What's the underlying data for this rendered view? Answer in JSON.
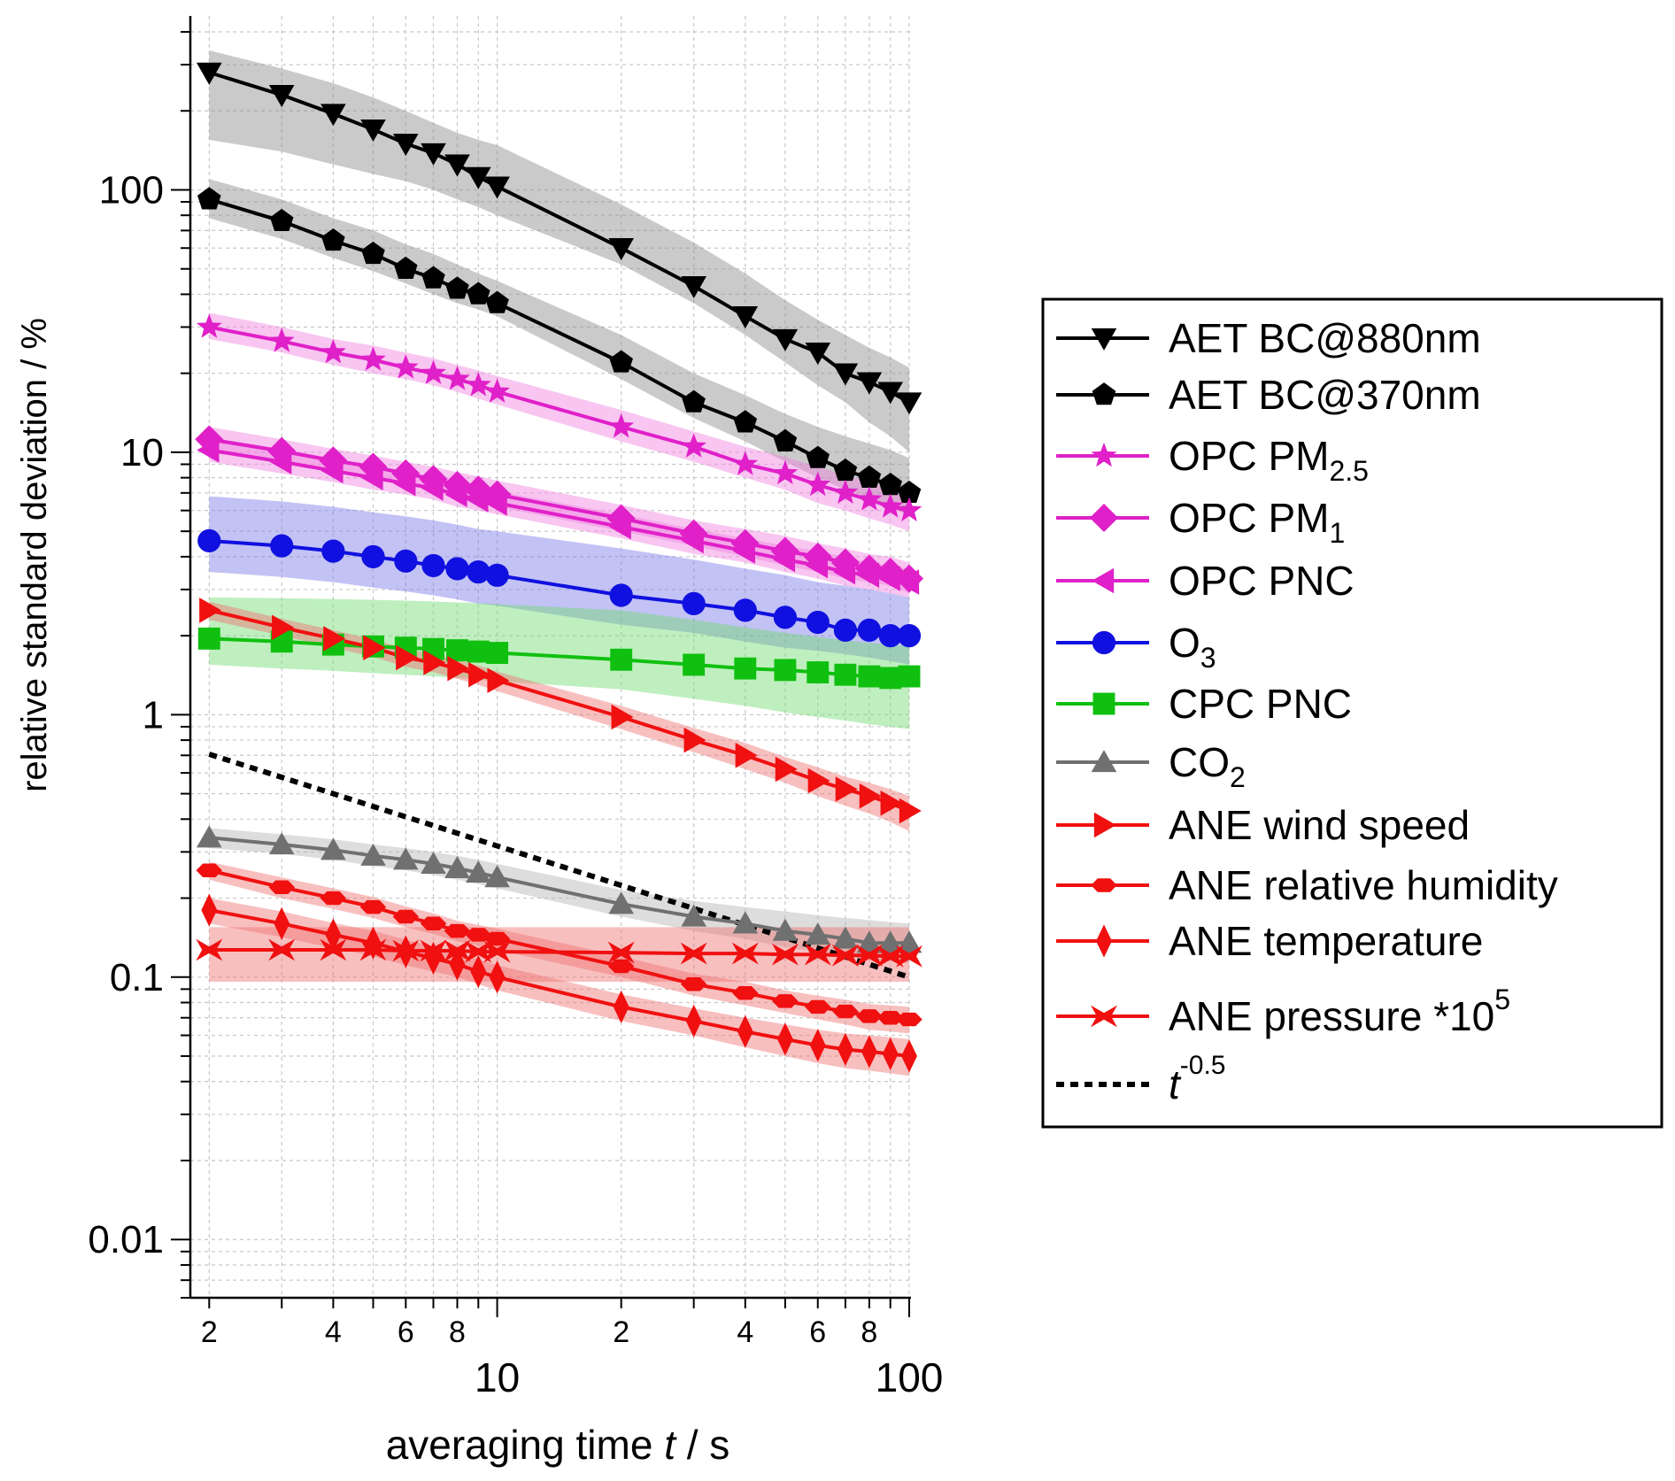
{
  "chart_data": {
    "type": "line",
    "xscale": "log",
    "yscale": "log",
    "xlim": [
      1.8,
      100
    ],
    "ylim": [
      0.006,
      460
    ],
    "grid": true,
    "xlabel": {
      "pre": "averaging time ",
      "italic": "t",
      "post": " / s"
    },
    "ylabel": "relative standard deviation / %",
    "x_major_ticks": [
      {
        "value": 10,
        "label": "10"
      },
      {
        "value": 100,
        "label": "100"
      }
    ],
    "x_minor_labeled_ticks": [
      {
        "value": 2,
        "label": "2"
      },
      {
        "value": 4,
        "label": "4"
      },
      {
        "value": 6,
        "label": "6"
      },
      {
        "value": 8,
        "label": "8"
      },
      {
        "value": 20,
        "label": "2"
      },
      {
        "value": 40,
        "label": "4"
      },
      {
        "value": 60,
        "label": "6"
      },
      {
        "value": 80,
        "label": "8"
      }
    ],
    "y_major_ticks": [
      {
        "value": 0.01,
        "label": "0.01"
      },
      {
        "value": 0.1,
        "label": "0.1"
      },
      {
        "value": 1,
        "label": "1"
      },
      {
        "value": 10,
        "label": "10"
      },
      {
        "value": 100,
        "label": "100"
      }
    ],
    "x": [
      2,
      3,
      4,
      5,
      6,
      7,
      8,
      9,
      10,
      20,
      30,
      40,
      50,
      60,
      70,
      80,
      90,
      100
    ],
    "legend_position": "right",
    "series": [
      {
        "name": "AET BC@880nm",
        "label_main": "AET BC@880nm",
        "color": "#000000",
        "band_color": "#8a8a8a",
        "marker": "triangle-down",
        "values": [
          280,
          230,
          195,
          170,
          150,
          138,
          125,
          112,
          103,
          60,
          43,
          33,
          27,
          24,
          20,
          18.5,
          17,
          15.5
        ],
        "band_lower": [
          155,
          140,
          125,
          115,
          108,
          100,
          92,
          86,
          80,
          52,
          37,
          28,
          22,
          18,
          15.5,
          13,
          11.5,
          10
        ],
        "band_upper": [
          340,
          290,
          255,
          225,
          200,
          180,
          165,
          155,
          148,
          88,
          63,
          48,
          38,
          32,
          28,
          25,
          23,
          21
        ]
      },
      {
        "name": "AET BC@370nm",
        "label_main": "AET BC@370nm",
        "color": "#000000",
        "band_color": "#8a8a8a",
        "marker": "pentagon",
        "values": [
          92,
          76,
          64,
          57,
          50,
          46,
          42,
          40,
          37,
          22,
          15.5,
          13,
          11,
          9.5,
          8.5,
          8,
          7.5,
          7
        ],
        "band_lower": [
          78,
          65,
          55,
          49,
          44,
          40,
          37,
          35,
          33,
          19,
          13.5,
          11,
          9.2,
          8,
          7.2,
          6.7,
          6.2,
          5.7
        ],
        "band_upper": [
          110,
          92,
          78,
          70,
          62,
          57,
          52,
          48,
          45,
          28,
          20,
          16.5,
          14,
          12.5,
          11.5,
          10.8,
          10.2,
          9.5
        ]
      },
      {
        "name": "OPC PM2.5",
        "label_main": "OPC PM",
        "label_sub": "2.5",
        "color": "#e020c8",
        "band_color": "#f080e0",
        "marker": "star",
        "values": [
          30,
          26.5,
          24,
          22.5,
          21,
          20,
          19,
          18,
          17,
          12.5,
          10.5,
          9,
          8.3,
          7.5,
          7,
          6.6,
          6.2,
          6
        ],
        "band_lower": [
          27,
          24,
          21.5,
          20,
          19,
          18,
          17,
          16,
          15.2,
          11,
          9.2,
          8,
          7.2,
          6.4,
          6,
          5.6,
          5.3,
          5
        ],
        "band_upper": [
          34,
          30,
          27,
          25.5,
          24,
          22.8,
          21.5,
          20.5,
          19.5,
          14.5,
          12,
          10.5,
          9.6,
          8.8,
          8.2,
          7.7,
          7.3,
          7
        ]
      },
      {
        "name": "OPC PM1",
        "label_main": "OPC PM",
        "label_sub": "1",
        "color": "#e020c8",
        "band_color": "#f080e0",
        "marker": "diamond",
        "values": [
          11.2,
          10.1,
          9.3,
          8.8,
          8.3,
          7.9,
          7.5,
          7.2,
          6.9,
          5.6,
          4.9,
          4.5,
          4.2,
          4,
          3.8,
          3.6,
          3.5,
          3.3
        ],
        "band_lower": [
          10,
          9.1,
          8.4,
          7.9,
          7.5,
          7.1,
          6.7,
          6.5,
          6.2,
          5,
          4.4,
          4,
          3.7,
          3.5,
          3.3,
          3.2,
          3.1,
          2.9
        ],
        "band_upper": [
          12.5,
          11.2,
          10.3,
          9.7,
          9.2,
          8.8,
          8.4,
          8.1,
          7.8,
          6.3,
          5.5,
          5.1,
          4.8,
          4.5,
          4.3,
          4.1,
          4,
          3.8
        ]
      },
      {
        "name": "OPC PNC",
        "label_main": "OPC PNC",
        "color": "#e020c8",
        "band_color": "#f080e0",
        "marker": "triangle-left",
        "values": [
          10.2,
          9.2,
          8.5,
          8,
          7.6,
          7.3,
          6.9,
          6.6,
          6.4,
          5.2,
          4.6,
          4.2,
          3.9,
          3.7,
          3.5,
          3.4,
          3.3,
          3.2
        ],
        "band_lower": [
          9.2,
          8.3,
          7.7,
          7.2,
          6.9,
          6.6,
          6.2,
          6,
          5.8,
          4.7,
          4.1,
          3.8,
          3.5,
          3.3,
          3.1,
          3,
          2.9,
          2.8
        ],
        "band_upper": [
          11.4,
          10.3,
          9.5,
          8.9,
          8.4,
          8.1,
          7.7,
          7.4,
          7.1,
          5.8,
          5.1,
          4.7,
          4.4,
          4.2,
          4,
          3.8,
          3.7,
          3.6
        ]
      },
      {
        "name": "O3",
        "label_main": "O",
        "label_sub": "3",
        "color": "#1010e0",
        "band_color": "#7878e8",
        "marker": "circle",
        "values": [
          4.6,
          4.4,
          4.2,
          4.0,
          3.85,
          3.7,
          3.6,
          3.5,
          3.4,
          2.85,
          2.65,
          2.5,
          2.35,
          2.25,
          2.1,
          2.1,
          2.0,
          2.0
        ],
        "band_lower": [
          3.5,
          3.35,
          3.2,
          3.05,
          2.95,
          2.85,
          2.75,
          2.65,
          2.6,
          2.2,
          2.05,
          1.9,
          1.8,
          1.75,
          1.7,
          1.65,
          1.6,
          1.55
        ],
        "band_upper": [
          6.8,
          6.5,
          6.2,
          5.9,
          5.7,
          5.5,
          5.3,
          5.1,
          5,
          4.3,
          3.9,
          3.6,
          3.4,
          3.2,
          3.1,
          3,
          2.9,
          2.8
        ]
      },
      {
        "name": "CPC PNC",
        "label_main": "CPC PNC",
        "color": "#10c010",
        "band_color": "#70dc70",
        "marker": "square",
        "values": [
          1.95,
          1.9,
          1.85,
          1.82,
          1.8,
          1.78,
          1.76,
          1.74,
          1.72,
          1.62,
          1.55,
          1.5,
          1.48,
          1.45,
          1.42,
          1.4,
          1.38,
          1.4
        ],
        "band_lower": [
          1.55,
          1.5,
          1.47,
          1.44,
          1.42,
          1.4,
          1.38,
          1.36,
          1.34,
          1.25,
          1.15,
          1.08,
          1.02,
          0.98,
          0.95,
          0.92,
          0.9,
          0.88
        ],
        "band_upper": [
          2.8,
          2.78,
          2.76,
          2.74,
          2.72,
          2.7,
          2.68,
          2.66,
          2.64,
          2.5,
          2.3,
          2.15,
          2.05,
          1.98,
          1.92,
          1.88,
          1.85,
          1.82
        ]
      },
      {
        "name": "CO2",
        "label_main": "CO",
        "label_sub": "2",
        "color": "#707070",
        "band_color": "#b4b4b4",
        "marker": "triangle-up",
        "values": [
          0.34,
          0.32,
          0.305,
          0.29,
          0.28,
          0.27,
          0.26,
          0.25,
          0.24,
          0.19,
          0.17,
          0.16,
          0.15,
          0.145,
          0.14,
          0.135,
          0.135,
          0.135
        ],
        "band_lower": [
          0.31,
          0.295,
          0.28,
          0.265,
          0.255,
          0.245,
          0.235,
          0.226,
          0.218,
          0.17,
          0.15,
          0.14,
          0.13,
          0.125,
          0.12,
          0.117,
          0.115,
          0.113
        ],
        "band_upper": [
          0.37,
          0.35,
          0.335,
          0.32,
          0.31,
          0.3,
          0.29,
          0.28,
          0.27,
          0.215,
          0.195,
          0.185,
          0.178,
          0.172,
          0.168,
          0.165,
          0.162,
          0.16
        ]
      },
      {
        "name": "ANE wind speed",
        "label_main": "ANE wind speed",
        "color": "#f01010",
        "band_color": "#f07070",
        "marker": "triangle-right",
        "values": [
          2.5,
          2.15,
          1.95,
          1.8,
          1.65,
          1.58,
          1.5,
          1.42,
          1.35,
          0.98,
          0.8,
          0.7,
          0.62,
          0.56,
          0.52,
          0.49,
          0.46,
          0.43
        ],
        "band_lower": [
          2.3,
          2.0,
          1.8,
          1.66,
          1.52,
          1.45,
          1.37,
          1.3,
          1.23,
          0.88,
          0.72,
          0.62,
          0.55,
          0.49,
          0.45,
          0.42,
          0.39,
          0.36
        ],
        "band_upper": [
          2.7,
          2.32,
          2.1,
          1.94,
          1.78,
          1.7,
          1.62,
          1.54,
          1.46,
          1.08,
          0.89,
          0.78,
          0.69,
          0.63,
          0.58,
          0.55,
          0.52,
          0.49
        ]
      },
      {
        "name": "ANE relative humidity",
        "label_main": "ANE relative humidity",
        "color": "#f01010",
        "band_color": "#f07070",
        "marker": "hexagon",
        "values": [
          0.255,
          0.22,
          0.2,
          0.185,
          0.17,
          0.16,
          0.15,
          0.145,
          0.14,
          0.11,
          0.094,
          0.087,
          0.081,
          0.077,
          0.074,
          0.071,
          0.07,
          0.069
        ],
        "band_lower": [
          0.235,
          0.2,
          0.182,
          0.168,
          0.155,
          0.146,
          0.137,
          0.132,
          0.127,
          0.1,
          0.085,
          0.078,
          0.073,
          0.069,
          0.066,
          0.063,
          0.062,
          0.061
        ],
        "band_upper": [
          0.275,
          0.24,
          0.218,
          0.202,
          0.186,
          0.175,
          0.164,
          0.158,
          0.153,
          0.12,
          0.103,
          0.096,
          0.089,
          0.085,
          0.082,
          0.079,
          0.078,
          0.077
        ]
      },
      {
        "name": "ANE temperature",
        "label_main": "ANE temperature",
        "color": "#f01010",
        "band_color": "#f07070",
        "marker": "thin-diamond",
        "values": [
          0.18,
          0.16,
          0.145,
          0.135,
          0.125,
          0.118,
          0.112,
          0.105,
          0.1,
          0.077,
          0.068,
          0.062,
          0.058,
          0.055,
          0.053,
          0.052,
          0.051,
          0.05
        ],
        "band_lower": [
          0.16,
          0.142,
          0.129,
          0.12,
          0.111,
          0.105,
          0.1,
          0.094,
          0.089,
          0.068,
          0.06,
          0.054,
          0.05,
          0.047,
          0.045,
          0.044,
          0.043,
          0.042
        ],
        "band_upper": [
          0.2,
          0.178,
          0.161,
          0.15,
          0.139,
          0.131,
          0.124,
          0.117,
          0.111,
          0.086,
          0.076,
          0.07,
          0.066,
          0.063,
          0.061,
          0.06,
          0.059,
          0.058
        ]
      },
      {
        "name": "ANE pressure *10^5",
        "label_main": "ANE pressure *10",
        "label_sup": "5",
        "color": "#f01010",
        "band_color": "#f07070",
        "marker": "bowtie",
        "values": [
          0.127,
          0.127,
          0.127,
          0.127,
          0.126,
          0.126,
          0.126,
          0.125,
          0.125,
          0.124,
          0.123,
          0.123,
          0.122,
          0.122,
          0.121,
          0.121,
          0.12,
          0.12
        ],
        "band_lower": [
          0.096,
          0.096,
          0.096,
          0.096,
          0.096,
          0.096,
          0.096,
          0.096,
          0.096,
          0.096,
          0.096,
          0.096,
          0.096,
          0.096,
          0.096,
          0.096,
          0.096,
          0.096
        ],
        "band_upper": [
          0.155,
          0.155,
          0.155,
          0.155,
          0.155,
          0.155,
          0.155,
          0.155,
          0.155,
          0.155,
          0.155,
          0.155,
          0.155,
          0.155,
          0.155,
          0.155,
          0.155,
          0.155
        ]
      }
    ],
    "reference_line": {
      "name": "t^-0.5",
      "label_italic": "t",
      "label_sup": "-0.5",
      "color": "#000000",
      "style": "dotted",
      "x": [
        2,
        100
      ],
      "values": [
        0.707,
        0.1
      ]
    }
  }
}
